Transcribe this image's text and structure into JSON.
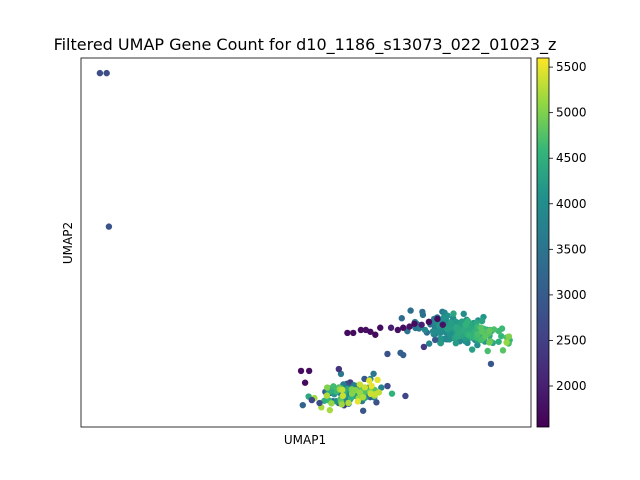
{
  "chart_data": {
    "type": "scatter",
    "title": "Filtered UMAP Gene Count for d10_1186_s13073_022_01023_z",
    "xlabel": "UMAP1",
    "ylabel": "UMAP2",
    "xlim": [
      0,
      100
    ],
    "ylim": [
      0,
      100
    ],
    "x_ticks_shown": false,
    "y_ticks_shown": false,
    "grid": false,
    "colormap": "viridis",
    "colorbar": {
      "min": 1550,
      "max": 5600,
      "ticks": [
        2000,
        2500,
        3000,
        3500,
        4000,
        4500,
        5000,
        5500
      ],
      "tick_labels": [
        "2000",
        "2500",
        "3000",
        "3500",
        "4000",
        "4500",
        "5000",
        "5500"
      ]
    },
    "clusters": [
      {
        "id": "main-right",
        "cx": 84.5,
        "cy": 26.1,
        "sx": 9.0,
        "sy": 3.6,
        "n": 260,
        "vmin": 2300,
        "vmax": 5500,
        "gradient": "x"
      },
      {
        "id": "bottom-left",
        "cx": 60.5,
        "cy": 9.1,
        "sx": 7.6,
        "sy": 3.4,
        "n": 150,
        "vmin": 2400,
        "vmax": 5500,
        "gradient": "random"
      }
    ],
    "points": [
      {
        "x": 4.2,
        "y": 95.9,
        "v": 2750
      },
      {
        "x": 5.7,
        "y": 95.9,
        "v": 2750
      },
      {
        "x": 6.2,
        "y": 54.3,
        "v": 2850
      },
      {
        "x": 59.2,
        "y": 25.5,
        "v": 1700
      },
      {
        "x": 60.5,
        "y": 25.5,
        "v": 1700
      },
      {
        "x": 62.2,
        "y": 26.3,
        "v": 1700
      },
      {
        "x": 63.3,
        "y": 26.3,
        "v": 1750
      },
      {
        "x": 64.3,
        "y": 25.8,
        "v": 1700
      },
      {
        "x": 65.4,
        "y": 25.0,
        "v": 1700
      },
      {
        "x": 66.5,
        "y": 26.9,
        "v": 1700
      },
      {
        "x": 68.9,
        "y": 26.9,
        "v": 2000
      },
      {
        "x": 70.4,
        "y": 26.3,
        "v": 1750
      },
      {
        "x": 71.6,
        "y": 26.9,
        "v": 1700
      },
      {
        "x": 73.0,
        "y": 27.2,
        "v": 1800
      },
      {
        "x": 74.1,
        "y": 28.0,
        "v": 1700
      },
      {
        "x": 75.7,
        "y": 27.7,
        "v": 2000
      },
      {
        "x": 77.3,
        "y": 28.5,
        "v": 1700
      },
      {
        "x": 79.2,
        "y": 29.3,
        "v": 1700
      },
      {
        "x": 80.4,
        "y": 27.7,
        "v": 1800
      },
      {
        "x": 68.1,
        "y": 19.8,
        "v": 2800
      },
      {
        "x": 71.0,
        "y": 20.1,
        "v": 3050
      },
      {
        "x": 71.6,
        "y": 19.5,
        "v": 3050
      },
      {
        "x": 76.2,
        "y": 21.7,
        "v": 2400
      },
      {
        "x": 78.7,
        "y": 23.6,
        "v": 2900
      },
      {
        "x": 91.1,
        "y": 17.1,
        "v": 2900
      },
      {
        "x": 48.9,
        "y": 15.2,
        "v": 1700
      },
      {
        "x": 50.7,
        "y": 15.2,
        "v": 1700
      },
      {
        "x": 49.8,
        "y": 12.0,
        "v": 1700
      },
      {
        "x": 51.3,
        "y": 7.3,
        "v": 2600
      },
      {
        "x": 53.0,
        "y": 6.5,
        "v": 2750
      },
      {
        "x": 62.7,
        "y": 4.4,
        "v": 2900
      },
      {
        "x": 57.3,
        "y": 15.7,
        "v": 2300
      }
    ]
  }
}
